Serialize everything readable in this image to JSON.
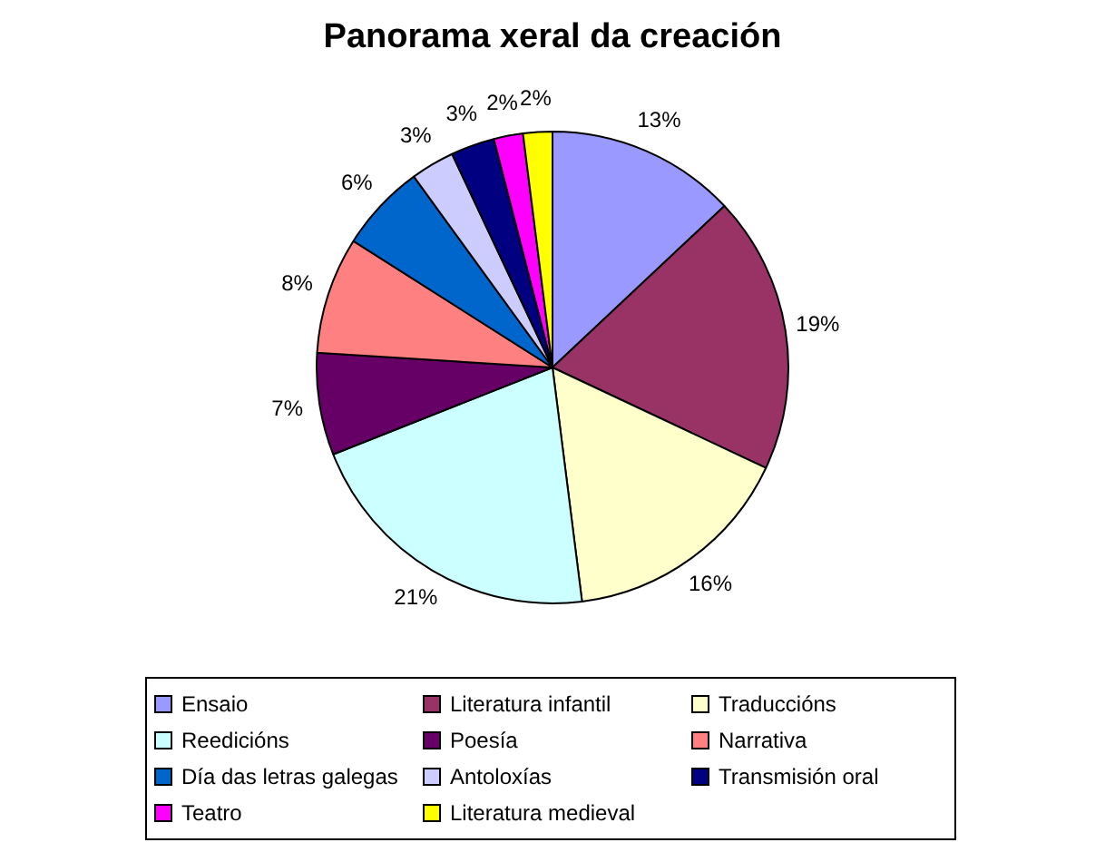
{
  "chart_data": {
    "type": "pie",
    "title": "Panorama xeral da creación",
    "categories": [
      "Ensaio",
      "Literatura infantil",
      "Traduccións",
      "Reedicións",
      "Poesía",
      "Narrativa",
      "Día das letras galegas",
      "Antoloxías",
      "Transmisión oral",
      "Teatro",
      "Literatura medieval"
    ],
    "values": [
      13,
      19,
      16,
      21,
      7,
      8,
      6,
      3,
      3,
      2,
      2
    ],
    "value_labels": [
      "13%",
      "19%",
      "16%",
      "21%",
      "7%",
      "8%",
      "6%",
      "3%",
      "3%",
      "2%",
      "2%"
    ],
    "colors": [
      "#9999ff",
      "#993366",
      "#ffffcc",
      "#ccffff",
      "#660066",
      "#ff8080",
      "#0066cc",
      "#ccccff",
      "#000080",
      "#ff00ff",
      "#ffff00"
    ],
    "legend": "bottom"
  }
}
